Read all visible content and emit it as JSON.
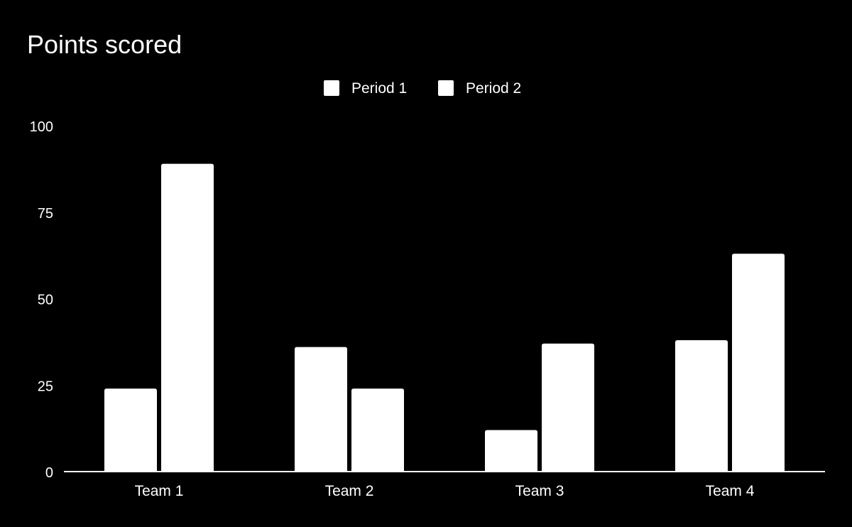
{
  "chart_data": {
    "type": "bar",
    "title": "Points scored",
    "categories": [
      "Team 1",
      "Team 2",
      "Team 3",
      "Team 4"
    ],
    "series": [
      {
        "name": "Period 1",
        "values": [
          24,
          36,
          12,
          38
        ],
        "color": "#ffffff"
      },
      {
        "name": "Period 2",
        "values": [
          89,
          24,
          37,
          63
        ],
        "color": "#ffffff"
      }
    ],
    "yticks": [
      "0",
      "25",
      "50",
      "75",
      "100"
    ],
    "ylim": [
      0,
      100
    ],
    "legend_position": "top-center",
    "grid": false,
    "background": "#000000",
    "text_color": "#ffffff"
  }
}
